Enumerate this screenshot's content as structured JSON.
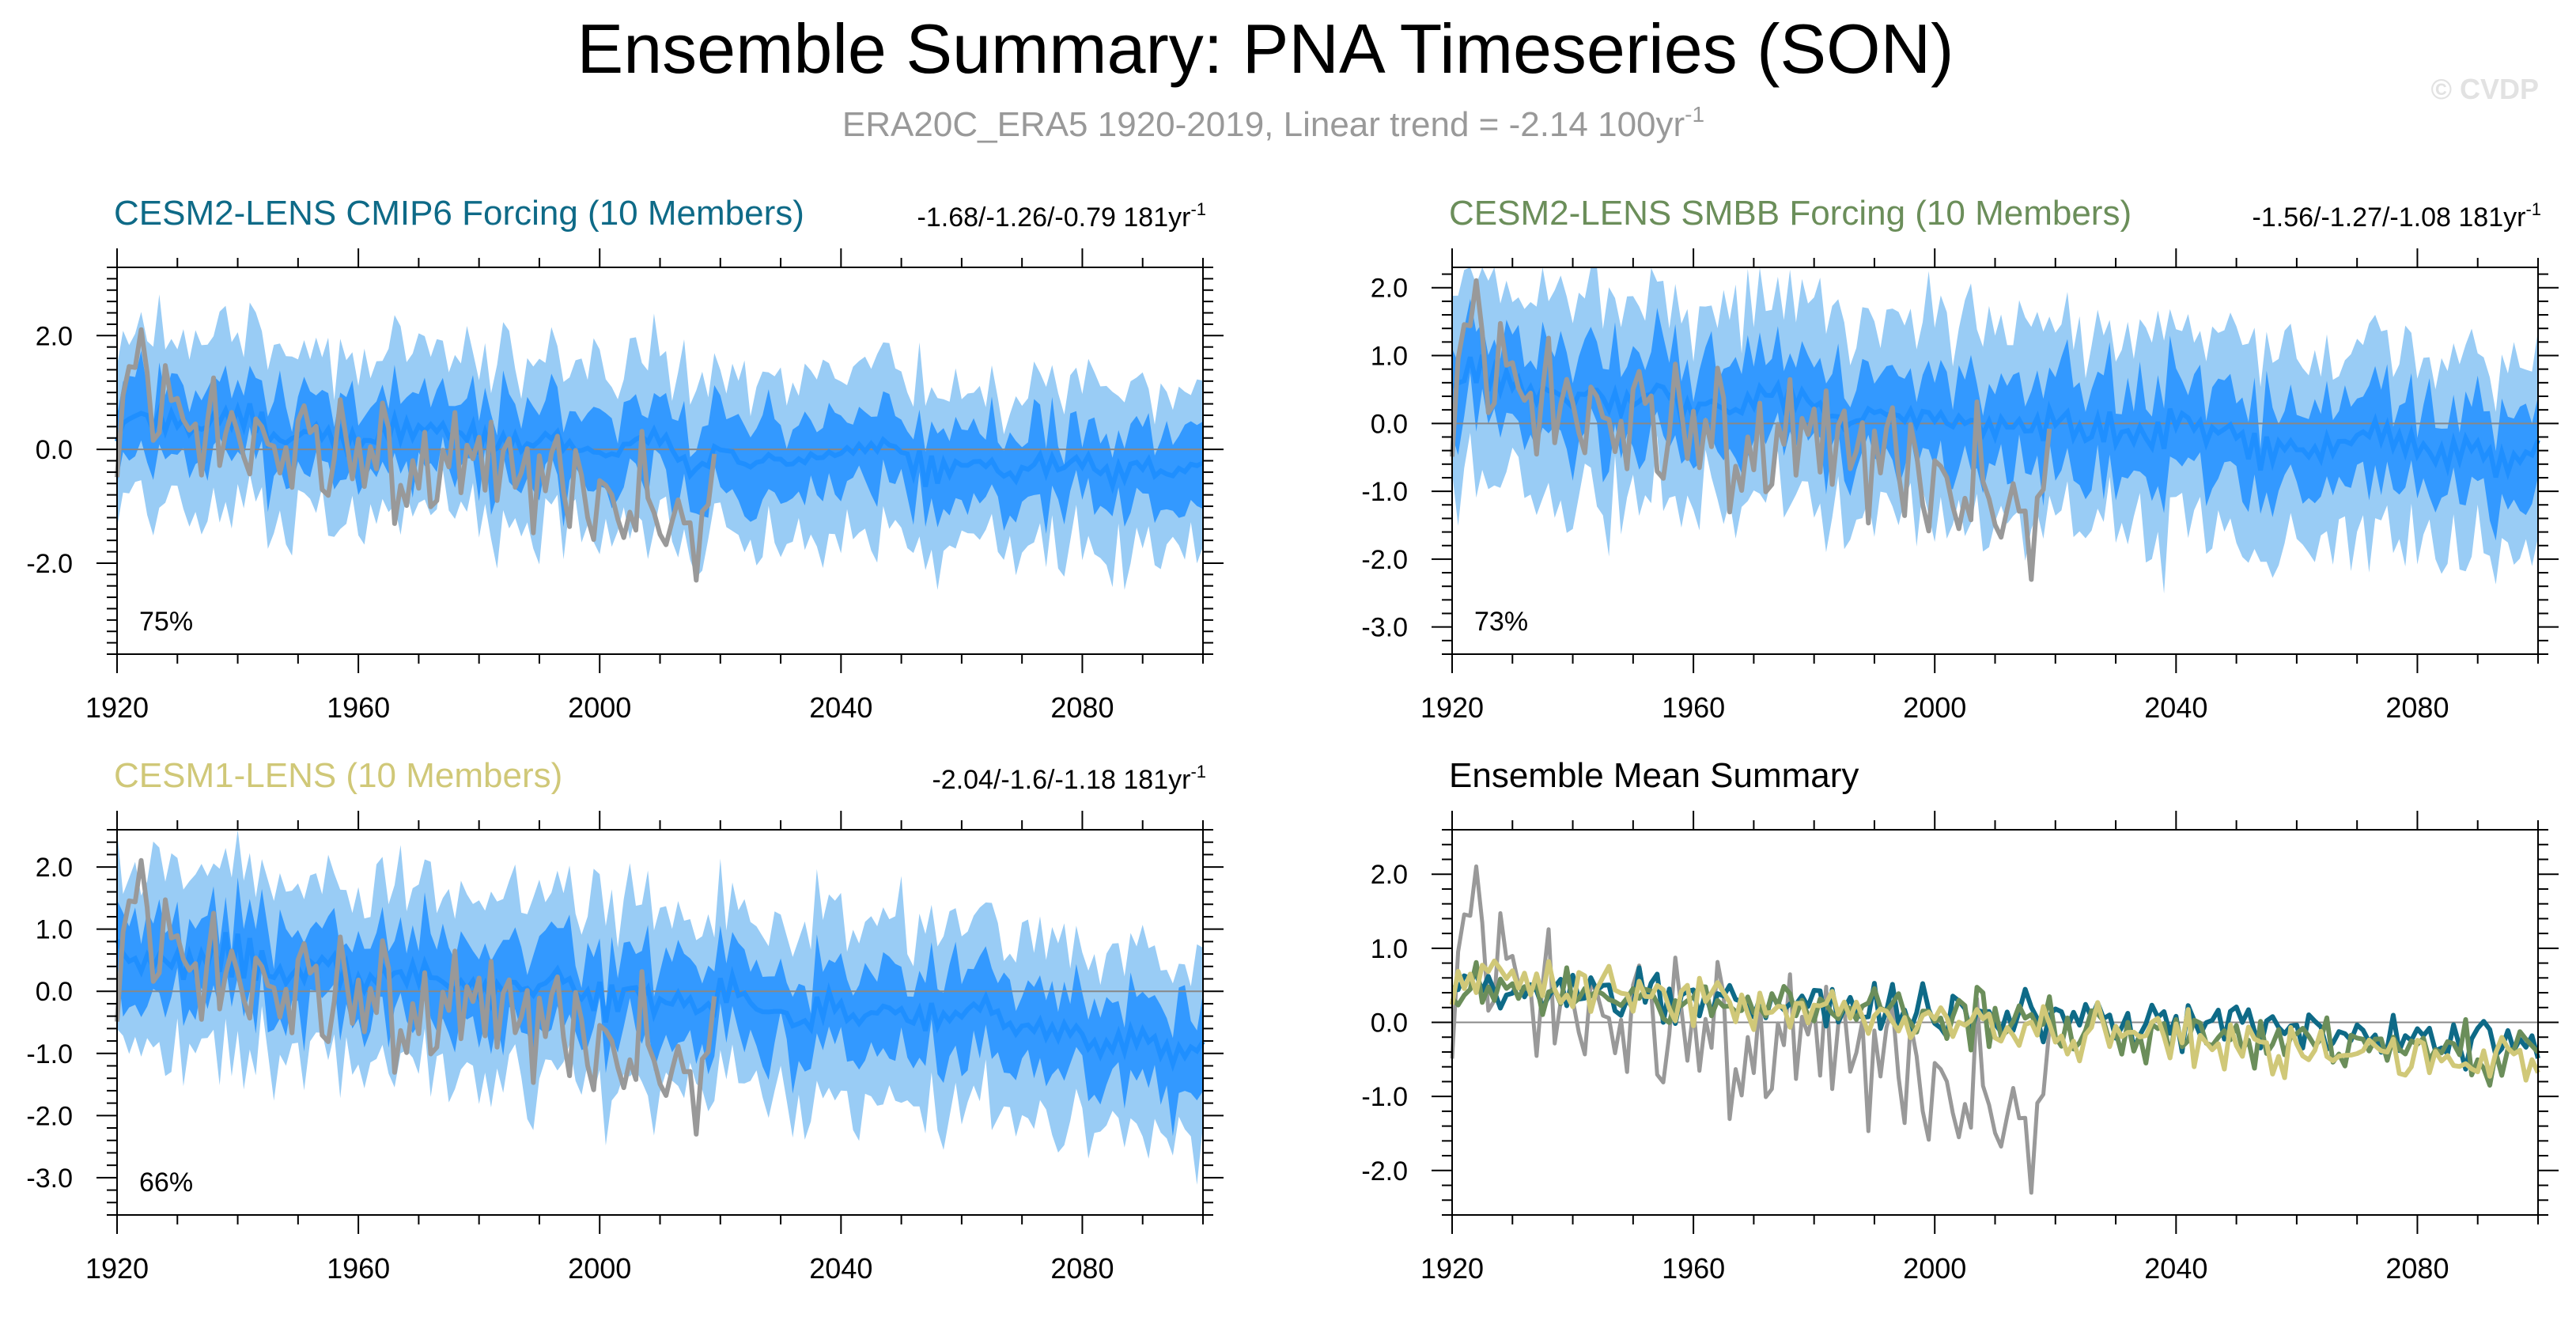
{
  "title": "Ensemble Summary: PNA Timeseries (SON)",
  "subtitle": "ERA20C_ERA5 1920-2019, Linear trend = -2.14 100yr",
  "subtitle_sup": "-1",
  "watermark": "© CVDP",
  "colors": {
    "outer_band": "#99ccf5",
    "inner_band": "#3399ff",
    "mean_line": "#1f8fff",
    "observed": "#999999",
    "cmip6": "#0e6a87",
    "smbb": "#6b8e5a",
    "cesm1": "#d0c878"
  },
  "chart_data": [
    {
      "id": "cmip6",
      "type": "area",
      "title": "CESM2-LENS CMIP6 Forcing (10 Members)",
      "trend": "-1.68/-1.26/-0.79 181yr",
      "trend_sup": "-1",
      "percent": "75%",
      "x_range": [
        1920,
        2100
      ],
      "ylim": [
        -3.6,
        3.2
      ],
      "yticks": [
        "2.0",
        "0.0",
        "-2.0"
      ],
      "ytick_values": [
        2.0,
        0.0,
        -2.0
      ],
      "xticks": [
        "1920",
        "1960",
        "2000",
        "2040",
        "2080"
      ],
      "xtick_values": [
        1920,
        1960,
        2000,
        2040,
        2080
      ],
      "series": [
        {
          "name": "ensemble 10-90% range",
          "role": "outer_band"
        },
        {
          "name": "ensemble 25-75% range",
          "role": "inner_band"
        },
        {
          "name": "ensemble mean",
          "role": "mean",
          "start": 0.5,
          "end": -0.45
        },
        {
          "name": "ERA20C_ERA5",
          "role": "observed",
          "x": [
            1920,
            2019
          ],
          "trend_per_100yr": -2.14
        }
      ]
    },
    {
      "id": "smbb",
      "type": "area",
      "title": "CESM2-LENS SMBB Forcing (10 Members)",
      "trend": "-1.56/-1.27/-1.08 181yr",
      "trend_sup": "-1",
      "percent": "73%",
      "x_range": [
        1920,
        2100
      ],
      "ylim": [
        -3.4,
        2.3
      ],
      "yticks": [
        "2.0",
        "1.0",
        "0.0",
        "-1.0",
        "-2.0",
        "-3.0"
      ],
      "ytick_values": [
        2.0,
        1.0,
        0.0,
        -1.0,
        -2.0,
        -3.0
      ],
      "xticks": [
        "1920",
        "1960",
        "2000",
        "2040",
        "2080"
      ],
      "xtick_values": [
        1920,
        1960,
        2000,
        2040,
        2080
      ],
      "series": [
        {
          "name": "ensemble 10-90% range",
          "role": "outer_band"
        },
        {
          "name": "ensemble 25-75% range",
          "role": "inner_band"
        },
        {
          "name": "ensemble mean",
          "role": "mean",
          "start": 0.55,
          "end": -0.55
        },
        {
          "name": "ERA20C_ERA5",
          "role": "observed",
          "x": [
            1920,
            2019
          ],
          "trend_per_100yr": -2.14
        }
      ]
    },
    {
      "id": "cesm1",
      "type": "area",
      "title": "CESM1-LENS (10 Members)",
      "trend": "-2.04/-1.6/-1.18 181yr",
      "trend_sup": "-1",
      "percent": "66%",
      "x_range": [
        1920,
        2100
      ],
      "ylim": [
        -3.6,
        2.6
      ],
      "yticks": [
        "2.0",
        "1.0",
        "0.0",
        "-1.0",
        "-2.0",
        "-3.0"
      ],
      "ytick_values": [
        2.0,
        1.0,
        0.0,
        -1.0,
        -2.0,
        -3.0
      ],
      "xticks": [
        "1920",
        "1960",
        "2000",
        "2040",
        "2080"
      ],
      "xtick_values": [
        1920,
        1960,
        2000,
        2040,
        2080
      ],
      "series": [
        {
          "name": "ensemble 10-90% range",
          "role": "outer_band"
        },
        {
          "name": "ensemble 25-75% range",
          "role": "inner_band"
        },
        {
          "name": "ensemble mean",
          "role": "mean",
          "start": 0.6,
          "end": -0.85
        },
        {
          "name": "ERA20C_ERA5",
          "role": "observed",
          "x": [
            1920,
            2019
          ],
          "trend_per_100yr": -2.14
        }
      ]
    },
    {
      "id": "mean",
      "type": "line",
      "title": "Ensemble Mean Summary",
      "x_range": [
        1920,
        2100
      ],
      "ylim": [
        -2.6,
        2.6
      ],
      "yticks": [
        "2.0",
        "1.0",
        "0.0",
        "-1.0",
        "-2.0"
      ],
      "ytick_values": [
        2.0,
        1.0,
        0.0,
        -1.0,
        -2.0
      ],
      "xticks": [
        "1920",
        "1960",
        "2000",
        "2040",
        "2080"
      ],
      "xtick_values": [
        1920,
        1960,
        2000,
        2040,
        2080
      ],
      "series": [
        {
          "name": "ERA20C_ERA5",
          "role": "observed"
        },
        {
          "name": "CESM2-LENS CMIP6 Forcing",
          "role": "cmip6",
          "start": 0.5,
          "end": -0.35
        },
        {
          "name": "CESM2-LENS SMBB Forcing",
          "role": "smbb",
          "start": 0.5,
          "end": -0.45
        },
        {
          "name": "CESM1-LENS",
          "role": "cesm1",
          "start": 0.55,
          "end": -0.6
        }
      ]
    }
  ]
}
